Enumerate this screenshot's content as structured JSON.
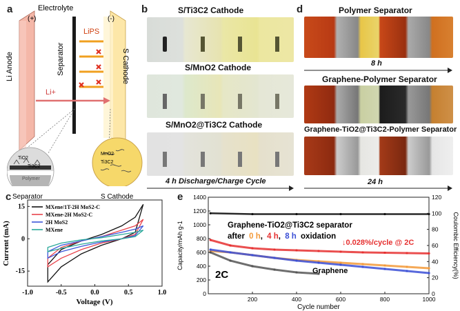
{
  "panels": {
    "a": {
      "label": "a",
      "electrolyte": "Electrolyte",
      "plus": "(+)",
      "minus": "(-)",
      "anode": "Li Anode",
      "cathode": "S Cathode",
      "separator": "Separator",
      "lips": "LiPS",
      "li_ion": "Li+",
      "inset_left_tio2": "TiO2",
      "inset_left_ti3c2": "Ti3C2",
      "inset_left_polymer": "Polymer",
      "inset_left_caption": "Separator",
      "inset_right_mno2": "MnO2",
      "inset_right_ti3c2": "Ti3C2",
      "inset_right_caption": "S Cathode",
      "colors": {
        "anode": "#f4b7a8",
        "cathode": "#fde7a8",
        "arrow_li": "#e07070",
        "cross": "#e03020",
        "lips_arrow": "#f0a020"
      }
    },
    "b": {
      "label": "b",
      "row1": "S/Ti3C2 Cathode",
      "row2": "S/MnO2 Cathode",
      "row3": "S/MnO2@Ti3C2 Cathode",
      "caption": "4 h Discharge/Charge Cycle"
    },
    "d": {
      "label": "d",
      "row1": "Polymer Separator",
      "time1": "8 h",
      "row2": "Graphene-Polymer Separator",
      "row3": "Graphene-TiO2@Ti3C2-Polymer Separator",
      "time2": "24 h"
    },
    "c": {
      "label": "c"
    },
    "e": {
      "label": "e"
    }
  },
  "chart_data": [
    {
      "type": "line",
      "panel": "c",
      "xlabel": "Voltage (V)",
      "ylabel": "Current (mA)",
      "xlim": [
        -1.0,
        1.0
      ],
      "ylim": [
        -22,
        18
      ],
      "xticks": [
        "-1.0",
        "-0.5",
        "0.0",
        "0.5",
        "1.0"
      ],
      "yticks": [
        "-15",
        "0",
        "15"
      ],
      "series": [
        {
          "name": "MXene/1T-2H MoS2-C",
          "color": "#111111",
          "upper": [
            [
              -0.7,
              -12
            ],
            [
              -0.5,
              -5
            ],
            [
              -0.2,
              -1
            ],
            [
              0.1,
              2
            ],
            [
              0.4,
              6
            ],
            [
              0.6,
              10
            ],
            [
              0.72,
              16
            ]
          ],
          "lower": [
            [
              0.72,
              16
            ],
            [
              0.6,
              3
            ],
            [
              0.4,
              0
            ],
            [
              0.1,
              -3
            ],
            [
              -0.2,
              -7
            ],
            [
              -0.5,
              -13
            ],
            [
              -0.7,
              -20
            ]
          ]
        },
        {
          "name": "MXene-2H MoS2-C",
          "color": "#e8434b",
          "upper": [
            [
              -0.7,
              -9
            ],
            [
              -0.5,
              -4
            ],
            [
              -0.2,
              -1
            ],
            [
              0.1,
              1
            ],
            [
              0.4,
              4
            ],
            [
              0.6,
              6
            ],
            [
              0.72,
              9
            ]
          ],
          "lower": [
            [
              0.72,
              9
            ],
            [
              0.6,
              2
            ],
            [
              0.4,
              0
            ],
            [
              0.1,
              -2
            ],
            [
              -0.2,
              -5
            ],
            [
              -0.5,
              -9
            ],
            [
              -0.7,
              -13
            ]
          ]
        },
        {
          "name": "2H MoS2",
          "color": "#3b55d9",
          "upper": [
            [
              -0.7,
              -6
            ],
            [
              -0.5,
              -3
            ],
            [
              -0.2,
              -1
            ],
            [
              0.1,
              1
            ],
            [
              0.4,
              3
            ],
            [
              0.6,
              4.5
            ],
            [
              0.72,
              6
            ]
          ],
          "lower": [
            [
              0.72,
              6
            ],
            [
              0.6,
              1.5
            ],
            [
              0.4,
              0
            ],
            [
              0.1,
              -1.5
            ],
            [
              -0.2,
              -3.5
            ],
            [
              -0.5,
              -6
            ],
            [
              -0.7,
              -9
            ]
          ]
        },
        {
          "name": "MXene",
          "color": "#2aa89a",
          "upper": [
            [
              -0.7,
              -4
            ],
            [
              -0.5,
              -2
            ],
            [
              -0.2,
              -0.5
            ],
            [
              0.1,
              0.5
            ],
            [
              0.4,
              2
            ],
            [
              0.6,
              3
            ],
            [
              0.72,
              4
            ]
          ],
          "lower": [
            [
              0.72,
              4
            ],
            [
              0.6,
              1
            ],
            [
              0.4,
              0
            ],
            [
              0.1,
              -1
            ],
            [
              -0.2,
              -2.5
            ],
            [
              -0.5,
              -4.5
            ],
            [
              -0.7,
              -6
            ]
          ]
        }
      ]
    },
    {
      "type": "scatter",
      "panel": "e",
      "xlabel": "Cycle number",
      "ylabel": "Capacity/mAh g-1",
      "y2label": "Coulombic Efficiency(%)",
      "xlim": [
        0,
        1000
      ],
      "ylim": [
        0,
        1400
      ],
      "y2lim": [
        0,
        120
      ],
      "xticks": [
        "200",
        "400",
        "600",
        "800",
        "1000"
      ],
      "yticks": [
        "0",
        "200",
        "400",
        "600",
        "800",
        "1000",
        "1200",
        "1400"
      ],
      "y2ticks": [
        "0",
        "20",
        "40",
        "60",
        "80",
        "100",
        "120"
      ],
      "title": "Graphene-TiO2@Ti3C2 separator",
      "subtitle_prefix": "after",
      "subtitle_0h": "0 h",
      "subtitle_4h": "4 h",
      "subtitle_8h": "8 h",
      "subtitle_suffix": "oxidation",
      "decay_note": "↓0.028%/cycle @ 2C",
      "rate_label": "2C",
      "graphene_label": "Graphene",
      "colors": {
        "0h": "#f39a3a",
        "4h": "#e63030",
        "8h": "#3b4fd6",
        "graphene": "#555555",
        "ce": "#111111"
      },
      "series": [
        {
          "name": "0 h",
          "x": [
            10,
            100,
            200,
            300,
            400,
            500,
            600,
            700,
            800,
            900,
            1000
          ],
          "y": [
            620,
            600,
            560,
            520,
            490,
            470,
            450,
            430,
            410,
            390,
            370
          ]
        },
        {
          "name": "4 h",
          "x": [
            10,
            100,
            200,
            300,
            400,
            500,
            600,
            700,
            800,
            900,
            1000
          ],
          "y": [
            780,
            700,
            660,
            640,
            630,
            620,
            610,
            600,
            595,
            590,
            585
          ]
        },
        {
          "name": "8 h",
          "x": [
            10,
            100,
            200,
            300,
            400,
            500,
            600,
            700,
            800,
            900,
            1000
          ],
          "y": [
            640,
            600,
            560,
            520,
            480,
            450,
            420,
            390,
            360,
            330,
            300
          ]
        },
        {
          "name": "Graphene",
          "x": [
            10,
            100,
            200,
            300,
            400,
            500
          ],
          "y": [
            600,
            480,
            400,
            350,
            310,
            290
          ]
        },
        {
          "name": "CE",
          "x": [
            10,
            200,
            400,
            600,
            800,
            1000
          ],
          "y": [
            100,
            99,
            99,
            99,
            99,
            99
          ]
        }
      ]
    }
  ]
}
